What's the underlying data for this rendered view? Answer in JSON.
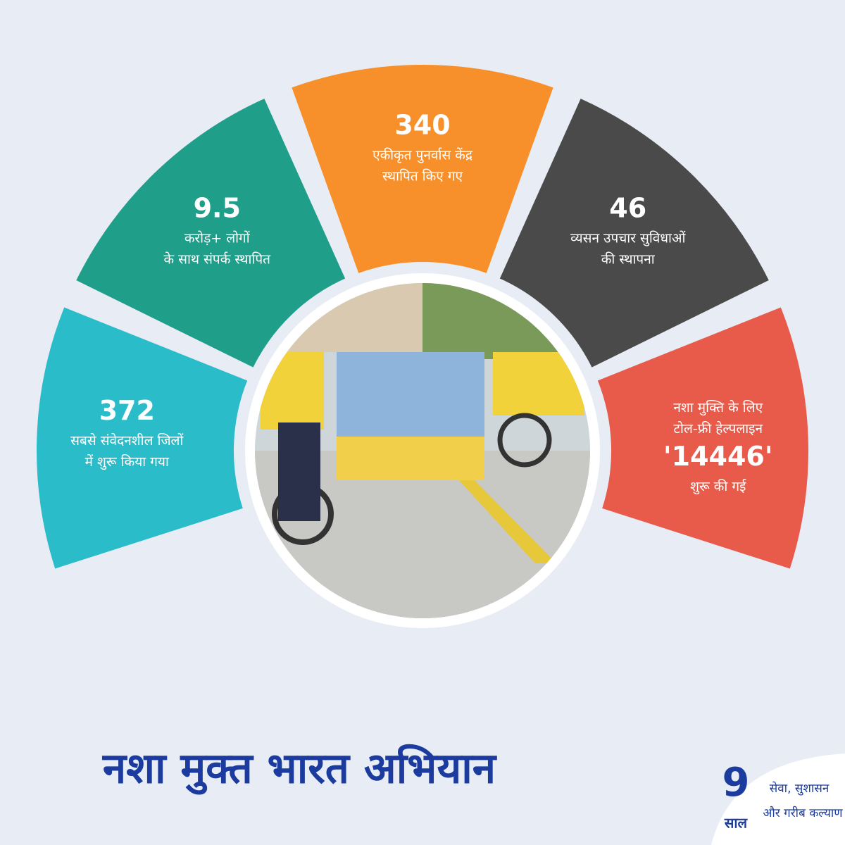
{
  "segments": [
    {
      "value": "372",
      "lines": [
        "सबसे संवेदनशील जिलों",
        "में शुरू किया गया"
      ]
    },
    {
      "value": "9.5",
      "lines": [
        "करोड़+ लोगों",
        "के साथ संपर्क स्थापित"
      ]
    },
    {
      "value": "340",
      "lines": [
        "एकीकृत पुनर्वास केंद्र",
        "स्थापित किए गए"
      ]
    },
    {
      "value": "46",
      "lines": [
        "व्यसन उपचार सुविधाओं",
        "की स्थापना"
      ]
    },
    {
      "lines_before": [
        "नशा मुक्ति के लिए",
        "टोल-फ्री हेल्पलाइन"
      ],
      "value": "'14446'",
      "lines": [
        "शुरू की गई"
      ]
    }
  ],
  "title": "नशा मुक्त भारत अभियान",
  "logo": {
    "number": "9",
    "word": "साल",
    "line1": "सेवा, सुशासन",
    "line2": "और गरीब कल्याण"
  }
}
